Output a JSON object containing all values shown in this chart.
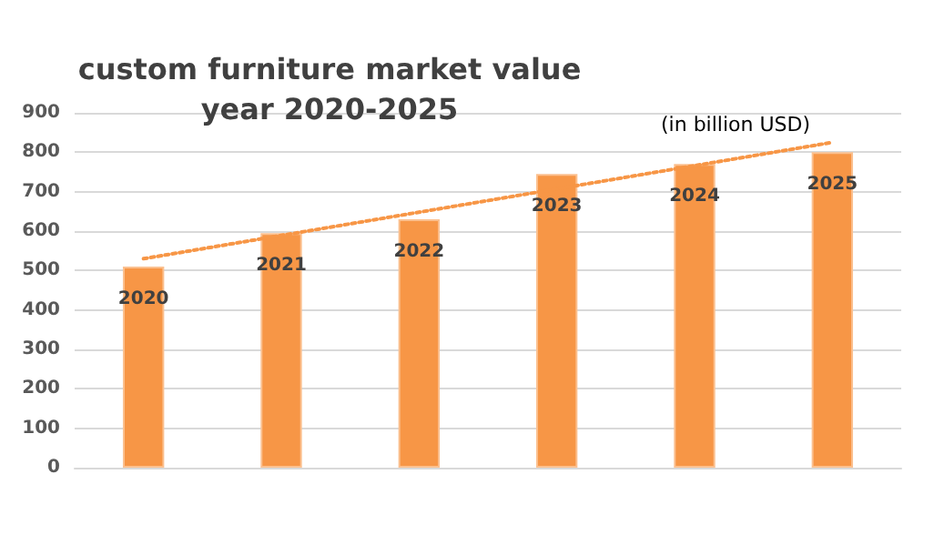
{
  "chart_data": {
    "type": "bar",
    "title": "custom furniture market value\nyear 2020-2025",
    "subtitle": "(in billion USD)",
    "categories": [
      "2020",
      "2021",
      "2022",
      "2023",
      "2024",
      "2025"
    ],
    "series": [
      {
        "color": "#f79646",
        "values": [
          510,
          595,
          630,
          745,
          770,
          800
        ]
      },
      {
        "type": "line",
        "color": "#f79646",
        "values": [
          530,
          null,
          null,
          null,
          null,
          825
        ],
        "line_style": "dotted",
        "marker": "none"
      }
    ],
    "ylim": [
      0,
      900
    ],
    "yticks": [
      0,
      100,
      200,
      300,
      400,
      500,
      600,
      700,
      800,
      900
    ],
    "grid": "y",
    "tick_labels": "y"
  }
}
